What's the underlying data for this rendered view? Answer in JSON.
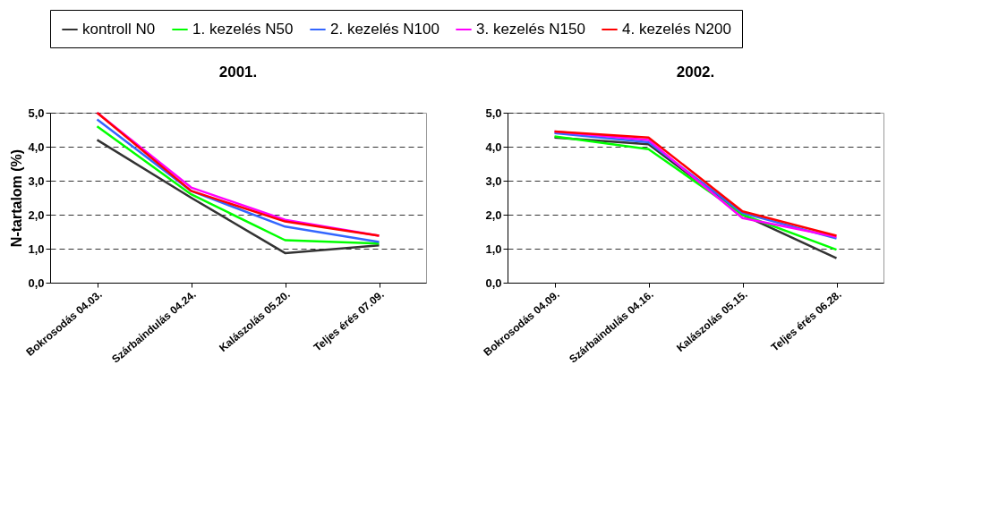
{
  "chart_data": [
    {
      "type": "line",
      "title": "2001.",
      "ylabel": "N-tartalom (%)",
      "categories": [
        "Bokrosodás 04.03.",
        "Szárbaindulás 04.24.",
        "Kalászolás 05.20.",
        "Teljes érés 07.09."
      ],
      "ylim": [
        0,
        5
      ],
      "yticks": [
        {
          "value": 0,
          "label": "0,0"
        },
        {
          "value": 1,
          "label": "1,0"
        },
        {
          "value": 2,
          "label": "2,0"
        },
        {
          "value": 3,
          "label": "3,0"
        },
        {
          "value": 4,
          "label": "4,0"
        },
        {
          "value": 5,
          "label": "5,0"
        }
      ],
      "grid": "y",
      "legend": "top",
      "line_style": "solid",
      "series": [
        {
          "name": "kontroll N0",
          "color": "#333333",
          "values": [
            4.2,
            2.5,
            0.87,
            1.1
          ]
        },
        {
          "name": "1. kezelés N50",
          "color": "#00ff00",
          "values": [
            4.6,
            2.6,
            1.25,
            1.15
          ]
        },
        {
          "name": "2. kezelés N100",
          "color": "#3366ff",
          "values": [
            4.8,
            2.7,
            1.65,
            1.2
          ]
        },
        {
          "name": "3. kezelés N150",
          "color": "#ff00ff",
          "values": [
            5.0,
            2.8,
            1.85,
            1.38
          ]
        },
        {
          "name": "4. kezelés N200",
          "color": "#ff0000",
          "values": [
            5.0,
            2.7,
            1.8,
            1.38
          ]
        }
      ]
    },
    {
      "type": "line",
      "title": "2002.",
      "categories": [
        "Bokrosodás 04.09.",
        "Szárbaindulás 04.16.",
        "Kalászolás 05.15.",
        "Teljes érés 06.28."
      ],
      "ylim": [
        0,
        5
      ],
      "yticks": [
        {
          "value": 0,
          "label": "0,0"
        },
        {
          "value": 1,
          "label": "1,0"
        },
        {
          "value": 2,
          "label": "2,0"
        },
        {
          "value": 3,
          "label": "3,0"
        },
        {
          "value": 4,
          "label": "4,0"
        },
        {
          "value": 5,
          "label": "5,0"
        }
      ],
      "grid": "y",
      "legend": "top",
      "line_style": "solid",
      "series": [
        {
          "name": "kontroll N0",
          "color": "#333333",
          "values": [
            4.27,
            4.07,
            2.0,
            0.72
          ]
        },
        {
          "name": "1. kezelés N50",
          "color": "#00ff00",
          "values": [
            4.3,
            3.93,
            2.0,
            0.97
          ]
        },
        {
          "name": "2. kezelés N100",
          "color": "#3366ff",
          "values": [
            4.4,
            4.13,
            2.05,
            1.3
          ]
        },
        {
          "name": "3. kezelés N150",
          "color": "#ff00ff",
          "values": [
            4.45,
            4.2,
            1.9,
            1.35
          ]
        },
        {
          "name": "4. kezelés N200",
          "color": "#ff0000",
          "values": [
            4.45,
            4.27,
            2.1,
            1.38
          ]
        }
      ]
    }
  ]
}
